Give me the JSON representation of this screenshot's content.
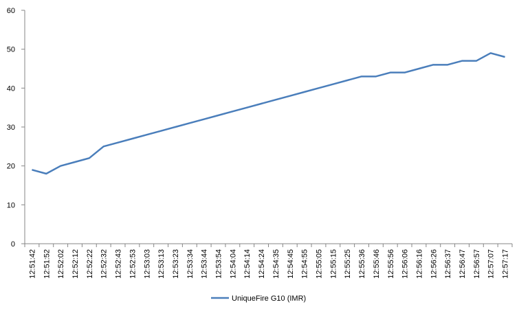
{
  "chart_data": {
    "type": "line",
    "categories": [
      "12:51:42",
      "12:51:52",
      "12:52:02",
      "12:52:12",
      "12:52:22",
      "12:52:32",
      "12:52:43",
      "12:52:53",
      "12:53:03",
      "12:53:13",
      "12:53:23",
      "12:53:34",
      "12:53:44",
      "12:53:54",
      "12:54:04",
      "12:54:14",
      "12:54:24",
      "12:54:35",
      "12:54:45",
      "12:54:55",
      "12:55:05",
      "12:55:15",
      "12:55:25",
      "12:55:36",
      "12:55:46",
      "12:55:56",
      "12:56:06",
      "12:56:16",
      "12:56:26",
      "12:56:37",
      "12:56:47",
      "12:56:57",
      "12:57:07",
      "12:57:17"
    ],
    "series": [
      {
        "name": "UniqueFire G10 (IMR)",
        "color": "#4a7ebb",
        "values": [
          19,
          18,
          20,
          21,
          22,
          25,
          26,
          27,
          28,
          29,
          30,
          31,
          32,
          33,
          34,
          35,
          36,
          37,
          38,
          39,
          40,
          41,
          42,
          43,
          43,
          44,
          44,
          45,
          46,
          46,
          47,
          47,
          49,
          48
        ]
      }
    ],
    "ylim": [
      0,
      60
    ],
    "yticks": [
      0,
      10,
      20,
      30,
      40,
      50,
      60
    ],
    "grid": false,
    "legend": "bottom"
  }
}
